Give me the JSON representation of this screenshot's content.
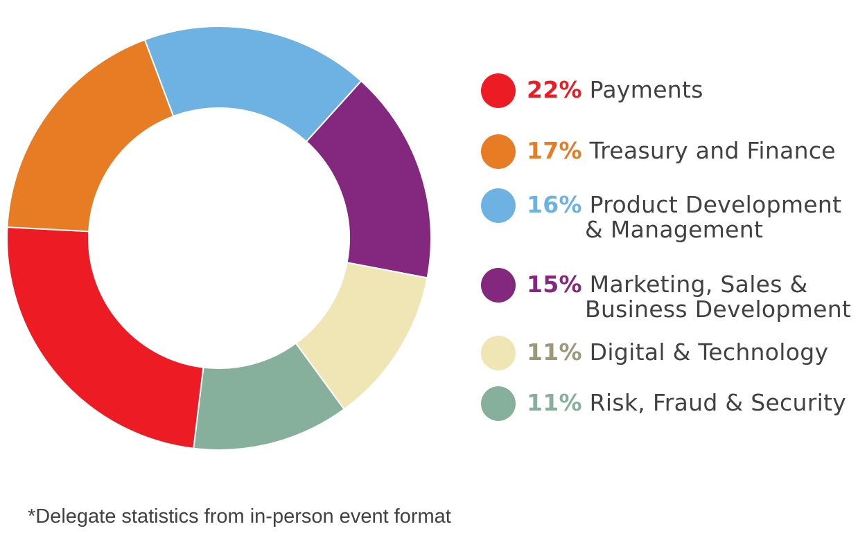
{
  "chart_data": {
    "type": "pie",
    "style": "donut",
    "legend_position": "right",
    "slices": [
      {
        "pct": "22%",
        "value": 22,
        "label": "Payments",
        "label2": "",
        "color": "#ed1c24"
      },
      {
        "pct": "17%",
        "value": 17,
        "label": "Treasury and Finance",
        "label2": "",
        "color": "#e77c25"
      },
      {
        "pct": "16%",
        "value": 16,
        "label": "Product Development",
        "label2": "& Management",
        "color": "#6eb2e3"
      },
      {
        "pct": "15%",
        "value": 15,
        "label": "Marketing, Sales &",
        "label2": "Business Development",
        "color": "#84277e"
      },
      {
        "pct": "11%",
        "value": 11,
        "label": "Digital & Technology",
        "label2": "",
        "color": "#f0e5b4",
        "pct_color": "#9c9978"
      },
      {
        "pct": "11%",
        "value": 11,
        "label": "Risk, Fraud & Security",
        "label2": "",
        "color": "#87b09c"
      }
    ]
  },
  "footnote": "*Delegate statistics from in-person event format"
}
